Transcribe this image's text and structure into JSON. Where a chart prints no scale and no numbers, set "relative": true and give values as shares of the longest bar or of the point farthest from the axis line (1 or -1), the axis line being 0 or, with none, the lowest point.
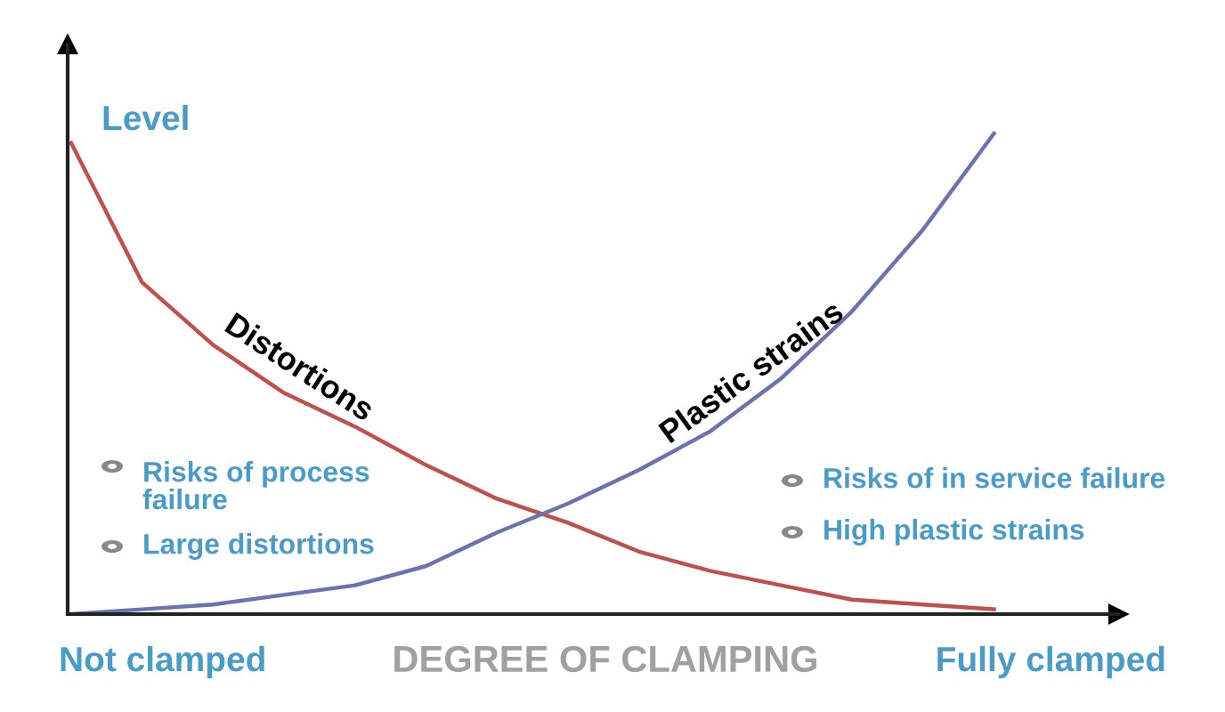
{
  "chart_data": {
    "type": "line",
    "relative": true,
    "xlabel": "DEGREE OF CLAMPING",
    "ylabel": "Level",
    "categories": [
      null,
      null,
      null,
      null,
      null,
      null,
      null,
      null,
      null,
      null,
      null,
      null,
      null,
      null
    ],
    "series": [
      {
        "name": "Distortions",
        "color": "#c0504d",
        "values": [
          0.98,
          0.69,
          0.56,
          0.46,
          0.39,
          0.31,
          0.24,
          0.19,
          0.13,
          0.09,
          0.06,
          0.03,
          0.02,
          0.01
        ]
      },
      {
        "name": "Plastic strains",
        "color": "#6a72b0",
        "values": [
          0,
          0.01,
          0.02,
          0.04,
          0.06,
          0.1,
          0.17,
          0.23,
          0.3,
          0.38,
          0.49,
          0.63,
          0.8,
          1
        ]
      }
    ],
    "annotations": [
      "Not clamped",
      "Fully clamped",
      "Risks of process\nfailure",
      "Large distortions",
      "Risks of in service failure",
      "High plastic strains"
    ],
    "grid": false,
    "legend": false,
    "marker": "none",
    "line_style": "solid"
  }
}
